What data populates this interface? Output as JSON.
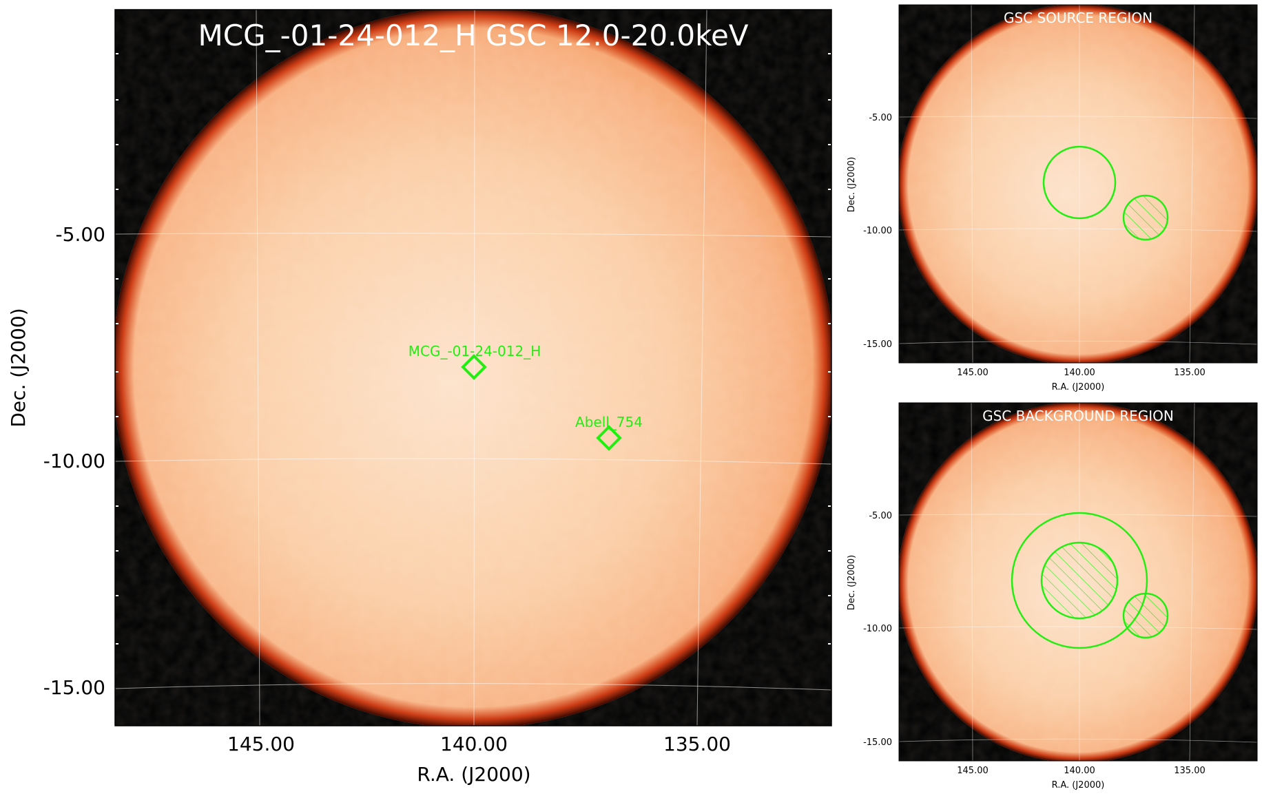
{
  "main_panel": {
    "title": "MCG_-01-24-012_H GSC 12.0-20.0keV",
    "xlabel": "R.A. (J2000)",
    "ylabel": "Dec. (J2000)",
    "x_ticks": [
      "145.00",
      "140.00",
      "135.00"
    ],
    "y_ticks": [
      "-5.00",
      "-10.00",
      "-15.00"
    ],
    "sources": [
      {
        "label": "MCG_-01-24-012_H",
        "ra": 140.1,
        "dec": -7.9
      },
      {
        "label": "Abell_754",
        "ra": 137.0,
        "dec": -9.6
      }
    ]
  },
  "source_panel": {
    "title": "GSC SOURCE REGION",
    "xlabel": "R.A. (J2000)",
    "ylabel": "Dec. (J2000)",
    "x_ticks": [
      "145.00",
      "140.00",
      "135.00"
    ],
    "y_ticks": [
      "-5.00",
      "-10.00",
      "-15.00"
    ]
  },
  "background_panel": {
    "title": "GSC BACKGROUND REGION",
    "xlabel": "R.A. (J2000)",
    "ylabel": "Dec. (J2000)",
    "x_ticks": [
      "145.00",
      "140.00",
      "135.00"
    ],
    "y_ticks": [
      "-5.00",
      "-10.00",
      "-15.00"
    ]
  },
  "colors": {
    "image_center": "#fde3cc",
    "image_edge": "#f6a36a",
    "background": "#000000",
    "limb": "#d23a0c",
    "region": "#22ee11",
    "grid": "#ffffff",
    "title_text": "#ffffff"
  }
}
